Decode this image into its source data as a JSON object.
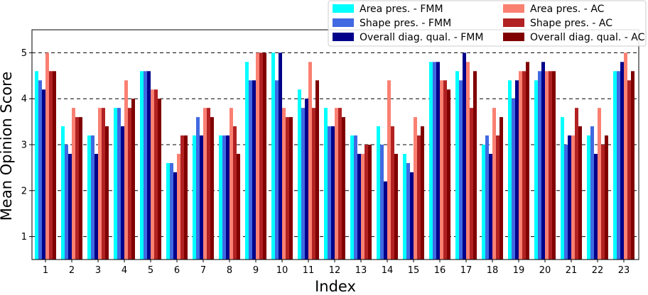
{
  "chart_data": {
    "type": "bar",
    "title": "",
    "xlabel": "Index",
    "ylabel": "Mean Opinion Score",
    "categories": [
      "1",
      "2",
      "3",
      "4",
      "5",
      "6",
      "7",
      "8",
      "9",
      "10",
      "11",
      "12",
      "13",
      "14",
      "15",
      "16",
      "17",
      "18",
      "19",
      "20",
      "21",
      "22",
      "23"
    ],
    "ylim": [
      0.5,
      5.5
    ],
    "yticks": [
      1,
      2,
      3,
      4,
      5
    ],
    "grid": "horizontal dashed at y ticks",
    "legend_position": "top-right",
    "legend_columns": 2,
    "series": [
      {
        "name": "Area pres. - FMM",
        "color": "#00FFFF",
        "values": [
          4.6,
          3.4,
          3.2,
          3.8,
          4.6,
          2.6,
          3.2,
          3.2,
          4.8,
          5.0,
          4.2,
          3.8,
          3.2,
          3.4,
          2.8,
          4.8,
          4.6,
          3.0,
          4.4,
          4.4,
          3.6,
          3.2,
          4.6
        ]
      },
      {
        "name": "Shape pres. - FMM",
        "color": "#4169E1",
        "values": [
          4.4,
          3.0,
          3.2,
          3.8,
          4.6,
          2.6,
          3.6,
          3.2,
          4.4,
          4.4,
          3.8,
          3.4,
          3.2,
          3.0,
          2.6,
          4.8,
          4.4,
          3.2,
          4.0,
          4.6,
          3.0,
          3.4,
          4.6
        ]
      },
      {
        "name": "Overall diag. qual. - FMM",
        "color": "#00008B",
        "values": [
          4.2,
          2.8,
          2.8,
          3.4,
          4.6,
          2.4,
          3.2,
          3.2,
          4.4,
          5.0,
          4.0,
          3.4,
          2.8,
          2.2,
          2.4,
          4.8,
          5.0,
          2.8,
          4.4,
          4.8,
          3.2,
          2.8,
          4.8
        ]
      },
      {
        "name": "Area pres. - AC",
        "color": "#FA8072",
        "values": [
          5.0,
          3.8,
          3.8,
          4.4,
          4.2,
          2.8,
          3.8,
          3.8,
          5.0,
          3.8,
          4.8,
          3.8,
          2.8,
          4.4,
          3.6,
          4.4,
          4.8,
          3.8,
          4.6,
          4.6,
          3.2,
          3.8,
          5.0
        ]
      },
      {
        "name": "Shape pres. - AC",
        "color": "#B22222",
        "values": [
          4.6,
          3.6,
          3.8,
          3.8,
          4.2,
          3.2,
          3.8,
          3.4,
          5.0,
          3.6,
          3.8,
          3.8,
          3.0,
          3.4,
          3.2,
          4.4,
          3.8,
          3.2,
          4.6,
          4.6,
          3.8,
          3.0,
          4.4
        ]
      },
      {
        "name": "Overall diag. qual. - AC",
        "color": "#800000",
        "values": [
          4.6,
          3.6,
          3.4,
          4.0,
          4.0,
          3.2,
          3.6,
          2.8,
          5.0,
          3.6,
          4.4,
          3.6,
          3.0,
          2.8,
          3.4,
          4.2,
          4.6,
          3.6,
          4.8,
          4.6,
          3.4,
          3.2,
          4.6
        ]
      }
    ]
  }
}
